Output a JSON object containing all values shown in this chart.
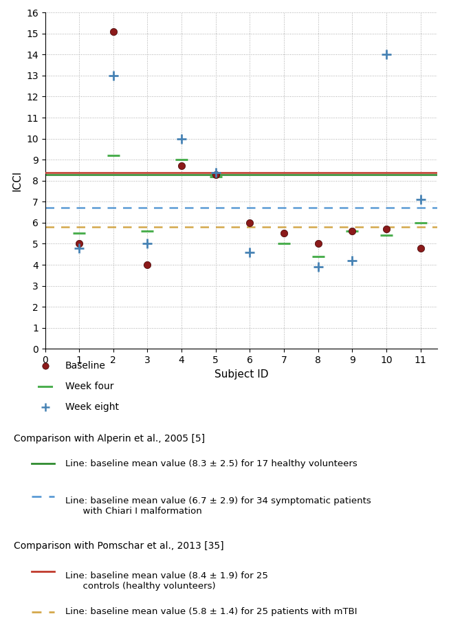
{
  "baseline": [
    [
      1,
      5.0
    ],
    [
      2,
      15.1
    ],
    [
      3,
      4.0
    ],
    [
      4,
      8.7
    ],
    [
      5,
      8.3
    ],
    [
      6,
      6.0
    ],
    [
      7,
      5.5
    ],
    [
      8,
      5.0
    ],
    [
      9,
      5.6
    ],
    [
      10,
      5.7
    ],
    [
      11,
      4.8
    ]
  ],
  "week_four": [
    [
      1,
      5.5
    ],
    [
      2,
      9.2
    ],
    [
      3,
      5.6
    ],
    [
      4,
      9.0
    ],
    [
      5,
      8.2
    ],
    [
      7,
      5.0
    ],
    [
      8,
      4.4
    ],
    [
      9,
      5.6
    ],
    [
      10,
      5.4
    ],
    [
      11,
      6.0
    ]
  ],
  "week_eight": [
    [
      1,
      4.8
    ],
    [
      2,
      13.0
    ],
    [
      3,
      5.0
    ],
    [
      4,
      10.0
    ],
    [
      5,
      8.4
    ],
    [
      6,
      4.6
    ],
    [
      8,
      3.9
    ],
    [
      9,
      4.2
    ],
    [
      11,
      7.1
    ],
    [
      10,
      14.0
    ]
  ],
  "hline_green": 8.3,
  "hline_blue_dashed": 6.7,
  "hline_red": 8.4,
  "hline_orange_dashed": 5.8,
  "baseline_color": "#8B1A1A",
  "week_four_color": "#4CAF50",
  "week_eight_color": "#4682B4",
  "xlabel": "Subject ID",
  "ylabel": "ICCI",
  "xlim": [
    0,
    11.5
  ],
  "ylim": [
    0,
    16
  ],
  "xticks": [
    0,
    1,
    2,
    3,
    4,
    5,
    6,
    7,
    8,
    9,
    10,
    11
  ],
  "yticks": [
    0,
    1,
    2,
    3,
    4,
    5,
    6,
    7,
    8,
    9,
    10,
    11,
    12,
    13,
    14,
    15,
    16
  ],
  "legend_items": [
    "Baseline",
    "Week four",
    "Week eight"
  ],
  "alperin_healthy_text": "Line: baseline mean value (8.3 ± 2.5) for 17 healthy volunteers",
  "alperin_chiari_text": "Line: baseline mean value (6.7 ± 2.9) for 34 symptomatic patients\n      with Chiari I malformation",
  "pomschar_controls_text": "Line: baseline mean value (8.4 ± 1.9) for 25\n      controls (healthy volunteers)",
  "pomschar_mtbi_text": "Line: baseline mean value (5.8 ± 1.4) for 25 patients with mTBI",
  "comparison_alperin_title": "Comparison with Alperin et al., 2005 [5]",
  "comparison_pomschar_title": "Comparison with Pomschar et al., 2013 [35]"
}
